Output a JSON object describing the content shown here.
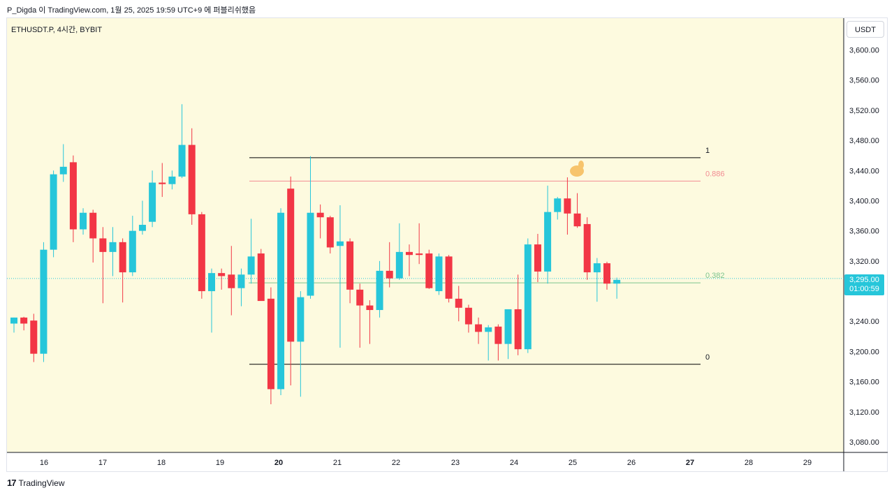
{
  "caption": "P_Digda 이 TradingView.com, 1월 25, 2025 19:59 UTC+9 에 퍼블리쉬했음",
  "symbol_line": "ETHUSDT.P, 4시간, BYBIT",
  "currency_button": "USDT",
  "last_price": "3,295.00",
  "countdown": "01:00:59",
  "footer_brand": "TradingView",
  "logo_glyph": "17",
  "colors": {
    "background": "#fdfadf",
    "up": "#26c6da",
    "down": "#f23645",
    "fib_0886": "#f28b92",
    "fib_0382": "#7cc48d",
    "fib_range": "#000000",
    "last_price_line": "#26c6da"
  },
  "chart_data": {
    "type": "candlestick",
    "ylim": [
      3050,
      3650
    ],
    "y_ticks": [
      "3,600.00",
      "3,560.00",
      "3,520.00",
      "3,480.00",
      "3,440.00",
      "3,400.00",
      "3,360.00",
      "3,320.00",
      "3,280.00",
      "3,240.00",
      "3,200.00",
      "3,160.00",
      "3,120.00",
      "3,080.00"
    ],
    "y_tick_values": [
      3600,
      3560,
      3520,
      3480,
      3440,
      3400,
      3360,
      3320,
      3280,
      3240,
      3200,
      3160,
      3120,
      3080
    ],
    "x_ticks": [
      "16",
      "17",
      "18",
      "19",
      "20",
      "21",
      "22",
      "23",
      "24",
      "25",
      "26",
      "27",
      "28",
      "29"
    ],
    "x_tick_bold": [
      "20",
      "27"
    ],
    "fib_levels": [
      {
        "label": "1",
        "value": 3457
      },
      {
        "label": "0.886",
        "value": 3426
      },
      {
        "label": "0.382",
        "value": 3291
      },
      {
        "label": "0",
        "value": 3183
      }
    ],
    "candles": [
      {
        "o": 3237,
        "h": 3245,
        "l": 3225,
        "c": 3245
      },
      {
        "o": 3245,
        "h": 3246,
        "l": 3228,
        "c": 3237
      },
      {
        "o": 3241,
        "h": 3250,
        "l": 3186,
        "c": 3197
      },
      {
        "o": 3197,
        "h": 3345,
        "l": 3186,
        "c": 3335
      },
      {
        "o": 3335,
        "h": 3440,
        "l": 3325,
        "c": 3435
      },
      {
        "o": 3435,
        "h": 3475,
        "l": 3425,
        "c": 3445
      },
      {
        "o": 3451,
        "h": 3460,
        "l": 3345,
        "c": 3362
      },
      {
        "o": 3362,
        "h": 3390,
        "l": 3355,
        "c": 3384
      },
      {
        "o": 3384,
        "h": 3388,
        "l": 3318,
        "c": 3350
      },
      {
        "o": 3350,
        "h": 3365,
        "l": 3264,
        "c": 3332
      },
      {
        "o": 3332,
        "h": 3365,
        "l": 3300,
        "c": 3345
      },
      {
        "o": 3345,
        "h": 3350,
        "l": 3265,
        "c": 3305
      },
      {
        "o": 3305,
        "h": 3380,
        "l": 3300,
        "c": 3360
      },
      {
        "o": 3360,
        "h": 3400,
        "l": 3355,
        "c": 3368
      },
      {
        "o": 3372,
        "h": 3440,
        "l": 3365,
        "c": 3424
      },
      {
        "o": 3424,
        "h": 3450,
        "l": 3405,
        "c": 3422
      },
      {
        "o": 3422,
        "h": 3440,
        "l": 3415,
        "c": 3432
      },
      {
        "o": 3432,
        "h": 3528,
        "l": 3430,
        "c": 3474
      },
      {
        "o": 3474,
        "h": 3496,
        "l": 3368,
        "c": 3382
      },
      {
        "o": 3382,
        "h": 3385,
        "l": 3270,
        "c": 3280
      },
      {
        "o": 3280,
        "h": 3310,
        "l": 3225,
        "c": 3304
      },
      {
        "o": 3304,
        "h": 3310,
        "l": 3282,
        "c": 3300
      },
      {
        "o": 3302,
        "h": 3340,
        "l": 3248,
        "c": 3284
      },
      {
        "o": 3284,
        "h": 3310,
        "l": 3260,
        "c": 3302
      },
      {
        "o": 3302,
        "h": 3376,
        "l": 3290,
        "c": 3326
      },
      {
        "o": 3330,
        "h": 3336,
        "l": 3270,
        "c": 3267
      },
      {
        "o": 3270,
        "h": 3285,
        "l": 3130,
        "c": 3150
      },
      {
        "o": 3150,
        "h": 3390,
        "l": 3142,
        "c": 3384
      },
      {
        "o": 3416,
        "h": 3432,
        "l": 3155,
        "c": 3213
      },
      {
        "o": 3213,
        "h": 3280,
        "l": 3140,
        "c": 3272
      },
      {
        "o": 3274,
        "h": 3459,
        "l": 3270,
        "c": 3384
      },
      {
        "o": 3384,
        "h": 3395,
        "l": 3350,
        "c": 3378
      },
      {
        "o": 3378,
        "h": 3380,
        "l": 3330,
        "c": 3338
      },
      {
        "o": 3340,
        "h": 3394,
        "l": 3205,
        "c": 3346
      },
      {
        "o": 3346,
        "h": 3350,
        "l": 3264,
        "c": 3282
      },
      {
        "o": 3282,
        "h": 3290,
        "l": 3205,
        "c": 3261
      },
      {
        "o": 3261,
        "h": 3268,
        "l": 3210,
        "c": 3255
      },
      {
        "o": 3255,
        "h": 3320,
        "l": 3245,
        "c": 3307
      },
      {
        "o": 3307,
        "h": 3345,
        "l": 3285,
        "c": 3297
      },
      {
        "o": 3297,
        "h": 3370,
        "l": 3295,
        "c": 3332
      },
      {
        "o": 3332,
        "h": 3342,
        "l": 3300,
        "c": 3328
      },
      {
        "o": 3330,
        "h": 3370,
        "l": 3316,
        "c": 3328
      },
      {
        "o": 3330,
        "h": 3335,
        "l": 3283,
        "c": 3284
      },
      {
        "o": 3280,
        "h": 3330,
        "l": 3275,
        "c": 3326
      },
      {
        "o": 3326,
        "h": 3328,
        "l": 3265,
        "c": 3270
      },
      {
        "o": 3270,
        "h": 3287,
        "l": 3240,
        "c": 3258
      },
      {
        "o": 3258,
        "h": 3262,
        "l": 3225,
        "c": 3236
      },
      {
        "o": 3236,
        "h": 3245,
        "l": 3210,
        "c": 3226
      },
      {
        "o": 3226,
        "h": 3235,
        "l": 3188,
        "c": 3232
      },
      {
        "o": 3233,
        "h": 3236,
        "l": 3188,
        "c": 3210
      },
      {
        "o": 3210,
        "h": 3256,
        "l": 3190,
        "c": 3256
      },
      {
        "o": 3256,
        "h": 3302,
        "l": 3195,
        "c": 3203
      },
      {
        "o": 3203,
        "h": 3350,
        "l": 3198,
        "c": 3342
      },
      {
        "o": 3342,
        "h": 3356,
        "l": 3292,
        "c": 3306
      },
      {
        "o": 3306,
        "h": 3420,
        "l": 3290,
        "c": 3385
      },
      {
        "o": 3385,
        "h": 3405,
        "l": 3375,
        "c": 3403
      },
      {
        "o": 3403,
        "h": 3431,
        "l": 3355,
        "c": 3383
      },
      {
        "o": 3383,
        "h": 3410,
        "l": 3364,
        "c": 3366
      },
      {
        "o": 3369,
        "h": 3378,
        "l": 3295,
        "c": 3305
      },
      {
        "o": 3305,
        "h": 3324,
        "l": 3266,
        "c": 3317
      },
      {
        "o": 3317,
        "h": 3319,
        "l": 3282,
        "c": 3290
      },
      {
        "o": 3290,
        "h": 3298,
        "l": 3270,
        "c": 3295
      }
    ]
  }
}
